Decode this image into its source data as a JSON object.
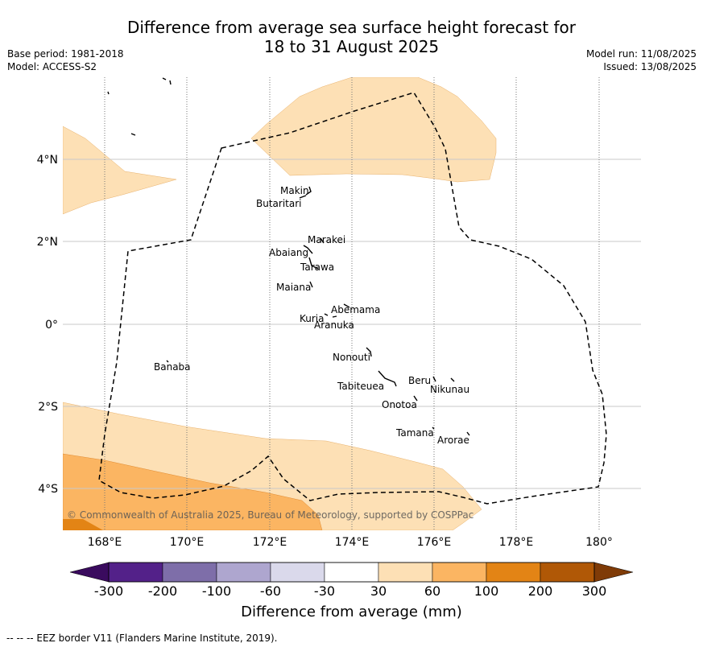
{
  "title_line1": "Difference from average sea surface height forecast for",
  "title_line2": "18 to 31 August 2025",
  "meta_left": {
    "base_period": "Base period: 1981-2018",
    "model": "Model: ACCESS-S2"
  },
  "meta_right": {
    "model_run": "Model run: 11/08/2025",
    "issued": "Issued: 13/08/2025"
  },
  "map": {
    "lon_range": [
      167,
      181
    ],
    "lat_range": [
      -5,
      6
    ],
    "x_ticks": [
      "168°E",
      "170°E",
      "172°E",
      "174°E",
      "176°E",
      "178°E",
      "180°"
    ],
    "y_ticks": [
      "4°N",
      "2°N",
      "0°",
      "2°S",
      "4°S"
    ],
    "islands": [
      {
        "name": "Makin"
      },
      {
        "name": "Butaritari"
      },
      {
        "name": "Marakei"
      },
      {
        "name": "Abaiang"
      },
      {
        "name": "Tarawa"
      },
      {
        "name": "Maiana"
      },
      {
        "name": "Abemama"
      },
      {
        "name": "Kuria"
      },
      {
        "name": "Aranuka"
      },
      {
        "name": "Nonouti"
      },
      {
        "name": "Banaba"
      },
      {
        "name": "Tabiteuea"
      },
      {
        "name": "Beru"
      },
      {
        "name": "Nikunau"
      },
      {
        "name": "Onotoa"
      },
      {
        "name": "Tamana"
      },
      {
        "name": "Arorae"
      }
    ],
    "copyright": "© Commonwealth of Australia 2025, Bureau of Meteorology, supported by COSPPac"
  },
  "colors": {
    "fill_30_60": "#fde0b5",
    "fill_60_100": "#fbb562",
    "fill_100_200": "#e38415"
  },
  "colorbar": {
    "ticks": [
      "-300",
      "-200",
      "-100",
      "-60",
      "-30",
      "30",
      "60",
      "100",
      "200",
      "300"
    ],
    "segments": [
      "#532189",
      "#7e6ea9",
      "#aea6cf",
      "#dad9eb",
      "#ffffff",
      "#fde0b5",
      "#fbb562",
      "#e38415",
      "#b05806"
    ],
    "under_color": "#3a0b5e",
    "over_color": "#7f3b07",
    "label": "Difference from average (mm)"
  },
  "footnote": "--  --  -- EEZ border V11 (Flanders Marine Institute, 2019)."
}
